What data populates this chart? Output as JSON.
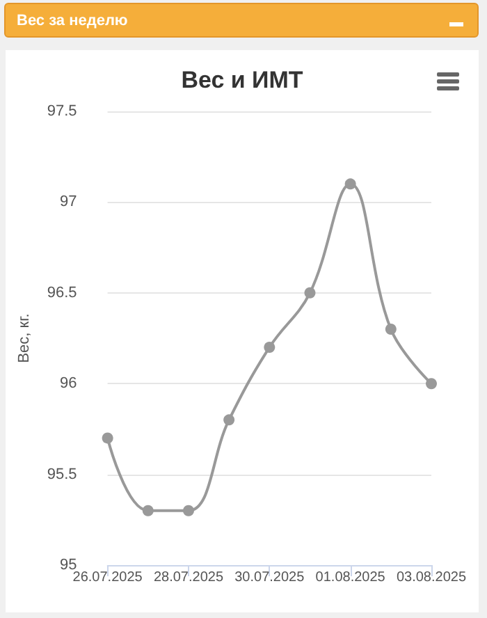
{
  "chart_data": {
    "type": "line",
    "title": "Вес и ИМТ",
    "ylabel": "Вес, кг.",
    "annotations": [
      "Вес за неделю"
    ],
    "categories": [
      "26.07.2025",
      null,
      "28.07.2025",
      null,
      "30.07.2025",
      null,
      "01.08.2025",
      null,
      "03.08.2025"
    ],
    "series": [
      {
        "color": "#999999",
        "values": [
          95.7,
          95.3,
          95.3,
          95.8,
          96.2,
          96.5,
          97.1,
          96.3,
          96.0
        ]
      }
    ],
    "ylim": [
      95,
      97.5
    ],
    "yticks": [
      95,
      95.5,
      96,
      96.5,
      97,
      97.5
    ],
    "grid": "y",
    "marker": "circle",
    "line_style": "solid"
  }
}
